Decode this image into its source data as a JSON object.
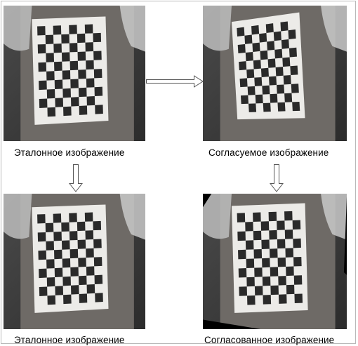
{
  "captions": {
    "top_left": "Эталонное изображение",
    "top_right": "Согласуемое изображение",
    "bottom_left": "Эталонное изображение",
    "bottom_right": "Согласованное изображение"
  },
  "colors": {
    "background_dark": "#3a3a3a",
    "wall": "#555555",
    "board": "#6e6a66",
    "paper": "#ecebe8",
    "square": "#2a2a2a",
    "arrow_stroke": "#555555"
  },
  "icons": {
    "right_arrow": "hollow-right-arrow",
    "down_arrow": "hollow-down-arrow"
  }
}
